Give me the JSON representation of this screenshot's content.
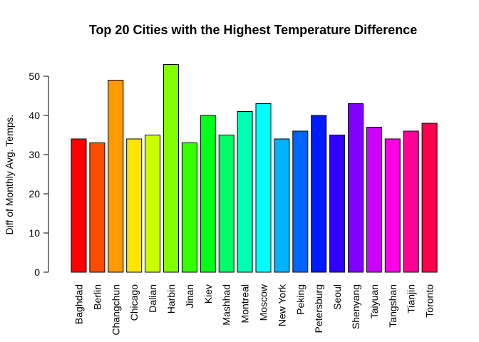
{
  "chart_data": {
    "type": "bar",
    "title": "Top 20 Cities with the Highest Temperature Difference",
    "xlabel": "",
    "ylabel": "Diff of Monthly Avg. Temps.",
    "categories": [
      "Baghdad",
      "Berlin",
      "Changchun",
      "Chicago",
      "Dalian",
      "Harbin",
      "Jinan",
      "Kiev",
      "Mashhad",
      "Montreal",
      "Moscow",
      "New York",
      "Peking",
      "Petersburg",
      "Seoul",
      "Shenyang",
      "Taiyuan",
      "Tangshan",
      "Tianjin",
      "Toronto"
    ],
    "values": [
      34,
      33,
      49,
      34,
      35,
      53,
      33,
      40,
      35,
      41,
      43,
      34,
      36,
      40,
      35,
      43,
      37,
      34,
      36,
      38
    ],
    "colors": [
      "#FF0000",
      "#FF4D00",
      "#FF9900",
      "#FFE500",
      "#CCFF00",
      "#80FF00",
      "#33FF00",
      "#00FF19",
      "#00FF66",
      "#00FFB2",
      "#00FFFF",
      "#00B3FF",
      "#0066FF",
      "#001AFF",
      "#3300FF",
      "#7F00FF",
      "#CC00FF",
      "#FF00E6",
      "#FF0099",
      "#FF004D"
    ],
    "yticks": [
      0,
      10,
      20,
      30,
      40,
      50
    ],
    "ylim": [
      0,
      55
    ],
    "grid": false,
    "legend": "none"
  }
}
